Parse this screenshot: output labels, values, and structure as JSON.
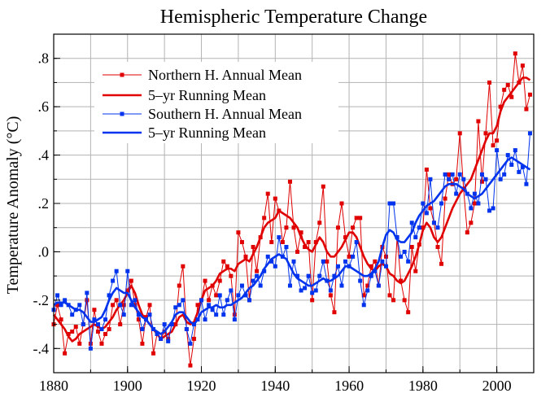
{
  "chart_data": {
    "type": "line",
    "title": "Hemispheric Temperature Change",
    "xlabel": "",
    "ylabel": "Temperature Anomaly (°C)",
    "xlim": [
      1880,
      2010
    ],
    "ylim": [
      -0.5,
      0.9
    ],
    "x_ticks": [
      1880,
      1900,
      1920,
      1940,
      1960,
      1980,
      2000
    ],
    "x_tick_labels": [
      "1880",
      "1900",
      "1920",
      "1940",
      "1960",
      "1980",
      "2000"
    ],
    "y_ticks": [
      -0.4,
      -0.2,
      0.0,
      0.2,
      0.4,
      0.6,
      0.8
    ],
    "y_tick_labels": [
      "-.4",
      "-.2",
      ".0",
      ".2",
      ".4",
      ".6",
      ".8"
    ],
    "grid": true,
    "legend_position": "top-left",
    "colors": {
      "northern": "#e00000",
      "southern": "#0033ee"
    },
    "x": [
      1880,
      1881,
      1882,
      1883,
      1884,
      1885,
      1886,
      1887,
      1888,
      1889,
      1890,
      1891,
      1892,
      1893,
      1894,
      1895,
      1896,
      1897,
      1898,
      1899,
      1900,
      1901,
      1902,
      1903,
      1904,
      1905,
      1906,
      1907,
      1908,
      1909,
      1910,
      1911,
      1912,
      1913,
      1914,
      1915,
      1916,
      1917,
      1918,
      1919,
      1920,
      1921,
      1922,
      1923,
      1924,
      1925,
      1926,
      1927,
      1928,
      1929,
      1930,
      1931,
      1932,
      1933,
      1934,
      1935,
      1936,
      1937,
      1938,
      1939,
      1940,
      1941,
      1942,
      1943,
      1944,
      1945,
      1946,
      1947,
      1948,
      1949,
      1950,
      1951,
      1952,
      1953,
      1954,
      1955,
      1956,
      1957,
      1958,
      1959,
      1960,
      1961,
      1962,
      1963,
      1964,
      1965,
      1966,
      1967,
      1968,
      1969,
      1970,
      1971,
      1972,
      1973,
      1974,
      1975,
      1976,
      1977,
      1978,
      1979,
      1980,
      1981,
      1982,
      1983,
      1984,
      1985,
      1986,
      1987,
      1988,
      1989,
      1990,
      1991,
      1992,
      1993,
      1994,
      1995,
      1996,
      1997,
      1998,
      1999,
      2000,
      2001,
      2002,
      2003,
      2004,
      2005,
      2006,
      2007,
      2008,
      2009
    ],
    "series": [
      {
        "name": "Northern H. Annual Mean",
        "color": "#e00000",
        "style": "thin-line-square-markers",
        "values": [
          -0.3,
          -0.22,
          -0.28,
          -0.42,
          -0.34,
          -0.33,
          -0.31,
          -0.38,
          -0.3,
          -0.2,
          -0.38,
          -0.24,
          -0.33,
          -0.38,
          -0.34,
          -0.32,
          -0.22,
          -0.2,
          -0.3,
          -0.22,
          -0.16,
          -0.12,
          -0.22,
          -0.28,
          -0.38,
          -0.27,
          -0.22,
          -0.42,
          -0.34,
          -0.36,
          -0.33,
          -0.36,
          -0.3,
          -0.3,
          -0.14,
          -0.06,
          -0.32,
          -0.47,
          -0.36,
          -0.22,
          -0.2,
          -0.12,
          -0.2,
          -0.14,
          -0.18,
          -0.12,
          -0.04,
          -0.06,
          -0.1,
          -0.26,
          0.08,
          0.04,
          -0.02,
          -0.2,
          0.02,
          -0.08,
          0.06,
          0.14,
          0.24,
          0.04,
          0.22,
          0.17,
          0.04,
          0.1,
          0.29,
          0.1,
          0.0,
          0.08,
          0.02,
          0.04,
          -0.2,
          0.04,
          0.12,
          0.27,
          -0.04,
          -0.18,
          -0.25,
          0.1,
          0.2,
          0.06,
          -0.02,
          0.1,
          0.14,
          0.14,
          -0.18,
          -0.14,
          -0.06,
          -0.04,
          -0.14,
          0.02,
          -0.02,
          -0.18,
          -0.2,
          0.06,
          -0.12,
          -0.2,
          -0.25,
          0.02,
          -0.08,
          0.03,
          0.1,
          0.34,
          0.18,
          0.12,
          0.02,
          -0.05,
          0.22,
          0.32,
          0.28,
          0.3,
          0.49,
          0.26,
          0.08,
          0.12,
          0.2,
          0.54,
          0.29,
          0.49,
          0.7,
          0.44,
          0.46,
          0.6,
          0.67,
          0.69,
          0.64,
          0.82,
          0.7,
          0.77,
          0.59,
          0.65
        ]
      },
      {
        "name": "5–yr Running Mean",
        "color": "#e00000",
        "style": "thick-line",
        "values": [
          -0.26,
          -0.28,
          -0.3,
          -0.32,
          -0.35,
          -0.37,
          -0.36,
          -0.34,
          -0.33,
          -0.32,
          -0.31,
          -0.3,
          -0.31,
          -0.32,
          -0.31,
          -0.29,
          -0.27,
          -0.24,
          -0.22,
          -0.2,
          -0.17,
          -0.14,
          -0.17,
          -0.22,
          -0.26,
          -0.28,
          -0.3,
          -0.32,
          -0.34,
          -0.36,
          -0.35,
          -0.34,
          -0.33,
          -0.3,
          -0.27,
          -0.26,
          -0.29,
          -0.3,
          -0.29,
          -0.25,
          -0.2,
          -0.16,
          -0.15,
          -0.14,
          -0.12,
          -0.09,
          -0.08,
          -0.07,
          -0.07,
          -0.08,
          -0.05,
          -0.04,
          -0.03,
          -0.04,
          -0.01,
          0.02,
          0.06,
          0.1,
          0.12,
          0.13,
          0.14,
          0.17,
          0.16,
          0.15,
          0.14,
          0.12,
          0.1,
          0.06,
          0.03,
          0.01,
          0.0,
          0.03,
          0.06,
          0.04,
          0.0,
          -0.02,
          -0.02,
          0.0,
          0.02,
          0.05,
          0.08,
          0.08,
          0.06,
          0.02,
          -0.02,
          -0.05,
          -0.07,
          -0.08,
          -0.06,
          -0.05,
          -0.06,
          -0.09,
          -0.1,
          -0.12,
          -0.13,
          -0.12,
          -0.09,
          -0.06,
          -0.02,
          0.03,
          0.09,
          0.12,
          0.1,
          0.06,
          0.04,
          0.06,
          0.1,
          0.14,
          0.18,
          0.21,
          0.24,
          0.26,
          0.28,
          0.3,
          0.34,
          0.38,
          0.42,
          0.46,
          0.49,
          0.49,
          0.52,
          0.58,
          0.62,
          0.64,
          0.66,
          0.68,
          0.7,
          0.72,
          0.72,
          0.71
        ]
      },
      {
        "name": "Southern H. Annual Mean",
        "color": "#0033ee",
        "style": "thin-line-square-markers",
        "values": [
          -0.24,
          -0.18,
          -0.22,
          -0.2,
          -0.22,
          -0.26,
          -0.24,
          -0.22,
          -0.3,
          -0.17,
          -0.4,
          -0.28,
          -0.3,
          -0.32,
          -0.28,
          -0.18,
          -0.12,
          -0.08,
          -0.22,
          -0.26,
          -0.08,
          -0.22,
          -0.2,
          -0.26,
          -0.32,
          -0.28,
          -0.26,
          -0.32,
          -0.34,
          -0.36,
          -0.3,
          -0.37,
          -0.3,
          -0.23,
          -0.22,
          -0.2,
          -0.32,
          -0.38,
          -0.3,
          -0.28,
          -0.2,
          -0.28,
          -0.22,
          -0.24,
          -0.26,
          -0.18,
          -0.26,
          -0.2,
          -0.16,
          -0.28,
          -0.18,
          -0.14,
          -0.18,
          -0.2,
          -0.12,
          -0.1,
          -0.14,
          -0.08,
          -0.02,
          -0.04,
          -0.06,
          0.06,
          -0.02,
          0.02,
          -0.14,
          -0.04,
          -0.1,
          -0.16,
          -0.15,
          -0.1,
          -0.17,
          -0.16,
          -0.1,
          -0.04,
          -0.12,
          -0.16,
          -0.1,
          -0.06,
          -0.14,
          -0.04,
          -0.06,
          -0.02,
          0.04,
          -0.12,
          -0.22,
          -0.16,
          -0.1,
          -0.08,
          -0.14,
          -0.04,
          -0.06,
          0.2,
          0.2,
          0.06,
          -0.02,
          0.0,
          -0.04,
          0.12,
          0.06,
          0.1,
          0.2,
          0.16,
          0.3,
          0.12,
          0.1,
          0.2,
          0.32,
          0.3,
          0.32,
          0.24,
          0.32,
          0.3,
          0.24,
          0.18,
          0.24,
          0.2,
          0.32,
          0.3,
          0.17,
          0.18,
          0.42,
          0.3,
          0.32,
          0.4,
          0.36,
          0.42,
          0.33,
          0.35,
          0.28,
          0.49
        ]
      },
      {
        "name": "5–yr Running Mean",
        "color": "#0033ee",
        "style": "thick-line",
        "values": [
          -0.22,
          -0.21,
          -0.21,
          -0.21,
          -0.22,
          -0.23,
          -0.24,
          -0.24,
          -0.25,
          -0.27,
          -0.29,
          -0.29,
          -0.28,
          -0.27,
          -0.24,
          -0.2,
          -0.17,
          -0.15,
          -0.16,
          -0.17,
          -0.17,
          -0.2,
          -0.23,
          -0.25,
          -0.27,
          -0.28,
          -0.3,
          -0.32,
          -0.33,
          -0.34,
          -0.33,
          -0.31,
          -0.29,
          -0.26,
          -0.25,
          -0.25,
          -0.27,
          -0.29,
          -0.3,
          -0.28,
          -0.25,
          -0.24,
          -0.23,
          -0.23,
          -0.22,
          -0.23,
          -0.23,
          -0.22,
          -0.22,
          -0.21,
          -0.2,
          -0.19,
          -0.17,
          -0.15,
          -0.14,
          -0.12,
          -0.1,
          -0.07,
          -0.05,
          -0.03,
          -0.02,
          -0.01,
          -0.02,
          -0.03,
          -0.06,
          -0.09,
          -0.11,
          -0.12,
          -0.13,
          -0.14,
          -0.14,
          -0.13,
          -0.12,
          -0.11,
          -0.12,
          -0.12,
          -0.11,
          -0.1,
          -0.08,
          -0.06,
          -0.06,
          -0.07,
          -0.08,
          -0.09,
          -0.1,
          -0.1,
          -0.09,
          -0.07,
          -0.04,
          0.02,
          0.07,
          0.09,
          0.08,
          0.05,
          0.04,
          0.04,
          0.06,
          0.08,
          0.12,
          0.15,
          0.17,
          0.19,
          0.2,
          0.21,
          0.23,
          0.25,
          0.27,
          0.28,
          0.28,
          0.28,
          0.27,
          0.26,
          0.24,
          0.23,
          0.22,
          0.23,
          0.24,
          0.26,
          0.28,
          0.3,
          0.32,
          0.34,
          0.36,
          0.38,
          0.39,
          0.38,
          0.37,
          0.36,
          0.35,
          0.34
        ]
      }
    ]
  }
}
